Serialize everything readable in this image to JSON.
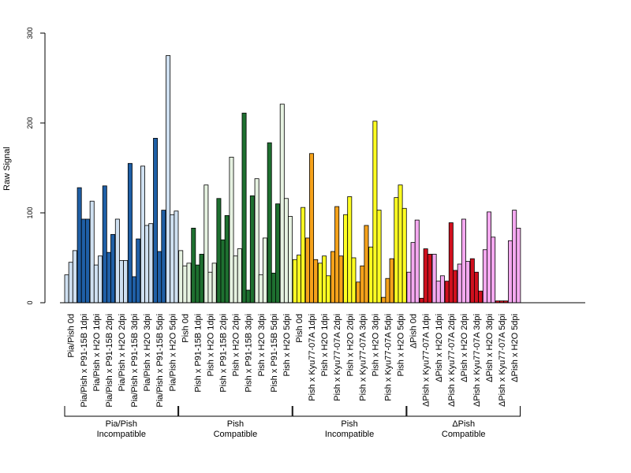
{
  "chart_data": {
    "type": "bar",
    "title": "",
    "ylabel": "Raw Signal",
    "xlabel": "",
    "ylim": [
      0,
      300
    ],
    "yticks": [
      0,
      100,
      200,
      300
    ],
    "bars_per_category": 3,
    "categories": [
      {
        "label": "Pia/Pish 0d",
        "color": "#cfe0f1",
        "values": [
          31,
          45,
          58
        ]
      },
      {
        "label": "Pia/Pish x P91-15B 1dpi",
        "color": "#1f5fa6",
        "values": [
          128,
          93,
          93
        ]
      },
      {
        "label": "Pia/Pish x H2O 1dpi",
        "color": "#cfe0f1",
        "values": [
          113,
          42,
          52
        ]
      },
      {
        "label": "Pia/Pish x P91-15B 2dpi",
        "color": "#1f5fa6",
        "values": [
          130,
          56,
          76
        ]
      },
      {
        "label": "Pia/Pish x H2O 2dpi",
        "color": "#cfe0f1",
        "values": [
          93,
          47,
          47
        ]
      },
      {
        "label": "Pia/Pish x P91-15B 3dpi",
        "color": "#1f5fa6",
        "values": [
          155,
          29,
          71
        ]
      },
      {
        "label": "Pia/Pish x H2O 3dpi",
        "color": "#cfe0f1",
        "values": [
          152,
          86,
          88
        ]
      },
      {
        "label": "Pia/Pish x P91-15B 5dpi",
        "color": "#1f5fa6",
        "values": [
          183,
          57,
          103
        ]
      },
      {
        "label": "Pia/Pish x H2O 5dpi",
        "color": "#cfe0f1",
        "values": [
          275,
          98,
          102
        ]
      },
      {
        "label": "Pish 0d",
        "color": "#e6f2e1",
        "values": [
          58,
          41,
          44
        ]
      },
      {
        "label": "Pish x P91-15B 1dpi",
        "color": "#1e7030",
        "values": [
          83,
          42,
          54
        ]
      },
      {
        "label": "Pish x H2O 1dpi",
        "color": "#e6f2e1",
        "values": [
          131,
          34,
          44
        ]
      },
      {
        "label": "Pish x P91-15B 2dpi",
        "color": "#1e7030",
        "values": [
          116,
          70,
          97
        ]
      },
      {
        "label": "Pish x H2O 2dpi",
        "color": "#e6f2e1",
        "values": [
          162,
          52,
          60
        ]
      },
      {
        "label": "Pish x P91-15B 3dpi",
        "color": "#1e7030",
        "values": [
          211,
          14,
          119
        ]
      },
      {
        "label": "Pish x H2O 3dpi",
        "color": "#e6f2e1",
        "values": [
          138,
          31,
          72
        ]
      },
      {
        "label": "Pish x P91-15B 5dpi",
        "color": "#1e7030",
        "values": [
          178,
          33,
          110
        ]
      },
      {
        "label": "Pish x H2O 5dpi",
        "color": "#e6f2e1",
        "values": [
          221,
          116,
          96
        ]
      },
      {
        "label": "Pish 0d",
        "color": "#ffff22",
        "values": [
          48,
          53,
          106
        ]
      },
      {
        "label": "Pish x Kyu77-07A 1dpi",
        "color": "#f5a21b",
        "values": [
          72,
          166,
          48
        ]
      },
      {
        "label": "Pish x H2O 1dpi",
        "color": "#ffff22",
        "values": [
          44,
          52,
          30
        ]
      },
      {
        "label": "Pish x Kyu77-07A 2dpi",
        "color": "#f5a21b",
        "values": [
          57,
          107,
          52
        ]
      },
      {
        "label": "Pish x H2O 2dpi",
        "color": "#ffff22",
        "values": [
          98,
          118,
          50
        ]
      },
      {
        "label": "Pish x Kyu77-07A 3dpi",
        "color": "#f5a21b",
        "values": [
          23,
          41,
          86
        ]
      },
      {
        "label": "Pish x H2O 3dpi",
        "color": "#ffff22",
        "values": [
          62,
          202,
          103
        ]
      },
      {
        "label": "Pish x Kyu77-07A 5dpi",
        "color": "#f5a21b",
        "values": [
          6,
          27,
          49
        ]
      },
      {
        "label": "Pish x H2O 5dpi",
        "color": "#ffff22",
        "values": [
          117,
          131,
          105
        ]
      },
      {
        "label": "ΔPish 0d",
        "color": "#f4a9f0",
        "values": [
          34,
          67,
          92
        ]
      },
      {
        "label": "ΔPish x Kyu77-07A 1dpi",
        "color": "#d0101e",
        "values": [
          5,
          60,
          54
        ]
      },
      {
        "label": "ΔPish x H2O 1dpi",
        "color": "#f4a9f0",
        "values": [
          54,
          24,
          30
        ]
      },
      {
        "label": "ΔPish x Kyu77-07A 2dpi",
        "color": "#d0101e",
        "values": [
          24,
          89,
          36
        ]
      },
      {
        "label": "ΔPish x H2O 2dpi",
        "color": "#f4a9f0",
        "values": [
          43,
          93,
          46
        ]
      },
      {
        "label": "ΔPish x Kyu77-07A 3dpi",
        "color": "#d0101e",
        "values": [
          49,
          34,
          13
        ]
      },
      {
        "label": "ΔPish x H2O 3dpi",
        "color": "#f4a9f0",
        "values": [
          59,
          101,
          73
        ]
      },
      {
        "label": "ΔPish x Kyu77-07A 5dpi",
        "color": "#d0101e",
        "values": [
          2,
          2,
          2
        ]
      },
      {
        "label": "ΔPish x H2O 5dpi",
        "color": "#f4a9f0",
        "values": [
          69,
          103,
          83
        ]
      }
    ],
    "groups": [
      {
        "line1": "Pia/Pish",
        "line2": "Incompatible",
        "start": 0,
        "end": 8
      },
      {
        "line1": "Pish",
        "line2": "Compatible",
        "start": 9,
        "end": 17
      },
      {
        "line1": "Pish",
        "line2": "Incompatible",
        "start": 18,
        "end": 26
      },
      {
        "line1": "ΔPish",
        "line2": "Compatible",
        "start": 27,
        "end": 35
      }
    ]
  }
}
